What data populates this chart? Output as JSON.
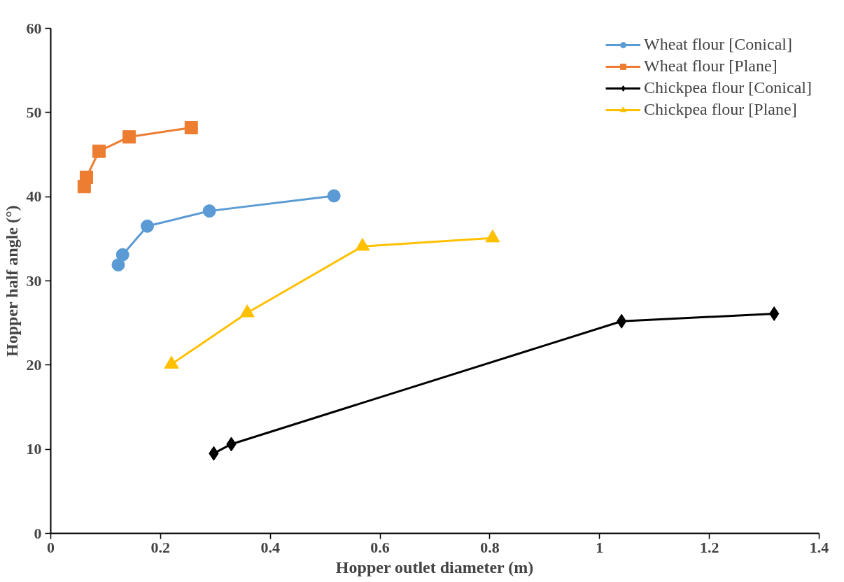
{
  "chart_data": {
    "type": "line",
    "xlabel": "Hopper outlet diameter (m)",
    "ylabel": "Hopper half angle (°)",
    "xlim": [
      0,
      1.4
    ],
    "xticks": [
      {
        "value": 0,
        "label": "0"
      },
      {
        "value": 0.2,
        "label": "0.2"
      },
      {
        "value": 0.4,
        "label": "0.4"
      },
      {
        "value": 0.6,
        "label": "0.6"
      },
      {
        "value": 0.8,
        "label": "0.8"
      },
      {
        "value": 1,
        "label": "1"
      },
      {
        "value": 1.2,
        "label": "1.2"
      },
      {
        "value": 1.4,
        "label": "1.4"
      }
    ],
    "ylim": [
      0,
      60
    ],
    "yticks": [
      0,
      10,
      20,
      30,
      40,
      50,
      60
    ],
    "grid": false,
    "legend": "top right",
    "series": [
      {
        "name": "Wheat flour [Conical]",
        "color": "#5b9bd5",
        "marker": "circle",
        "x": [
          0.123,
          0.131,
          0.176,
          0.289,
          0.516
        ],
        "values": [
          31.9,
          33.1,
          36.5,
          38.3,
          40.1
        ]
      },
      {
        "name": "Wheat flour [Plane]",
        "color": "#ed7d31",
        "marker": "square",
        "x": [
          0.061,
          0.065,
          0.088,
          0.143,
          0.256
        ],
        "values": [
          41.2,
          42.3,
          45.4,
          47.1,
          48.2
        ]
      },
      {
        "name": "Chickpea flour [Conical]",
        "color": "#000000",
        "marker": "diamond",
        "x": [
          0.297,
          0.329,
          1.04,
          1.318
        ],
        "values": [
          9.5,
          10.6,
          25.2,
          26.1
        ]
      },
      {
        "name": "Chickpea flour [Plane]",
        "color": "#ffc000",
        "marker": "triangle",
        "x": [
          0.22,
          0.358,
          0.568,
          0.805
        ],
        "values": [
          20.1,
          26.2,
          34.1,
          35.1
        ]
      }
    ]
  }
}
